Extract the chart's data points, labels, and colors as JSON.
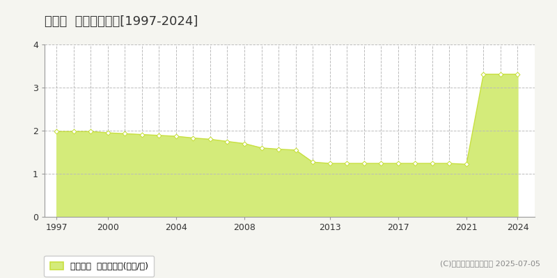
{
  "title": "川内村  基準地価推移[1997-2024]",
  "years": [
    1997,
    1998,
    1999,
    2000,
    2001,
    2002,
    2003,
    2004,
    2005,
    2006,
    2007,
    2008,
    2009,
    2010,
    2011,
    2012,
    2013,
    2014,
    2015,
    2016,
    2017,
    2018,
    2019,
    2020,
    2021,
    2022,
    2023,
    2024
  ],
  "values": [
    1.98,
    1.98,
    1.98,
    1.95,
    1.93,
    1.91,
    1.89,
    1.87,
    1.83,
    1.8,
    1.75,
    1.7,
    1.6,
    1.57,
    1.55,
    1.27,
    1.24,
    1.24,
    1.24,
    1.24,
    1.24,
    1.24,
    1.24,
    1.24,
    1.22,
    3.31,
    3.31,
    3.31
  ],
  "line_color": "#c8e040",
  "fill_color": "#d4eb7a",
  "marker_face": "white",
  "bg_color": "#f5f5f0",
  "plot_bg_color": "#ffffff",
  "grid_color": "#bbbbbb",
  "ylim": [
    0,
    4
  ],
  "yticks": [
    0,
    1,
    2,
    3,
    4
  ],
  "xticks": [
    1997,
    2000,
    2004,
    2008,
    2013,
    2017,
    2021,
    2024
  ],
  "xlim_left": 1996.3,
  "xlim_right": 2025.0,
  "legend_label": "基準地価  平均坪単価(万円/坪)",
  "copyright": "(C)土地価格ドットコム 2025-07-05",
  "title_fontsize": 13,
  "tick_fontsize": 9,
  "legend_fontsize": 9,
  "copyright_fontsize": 8
}
